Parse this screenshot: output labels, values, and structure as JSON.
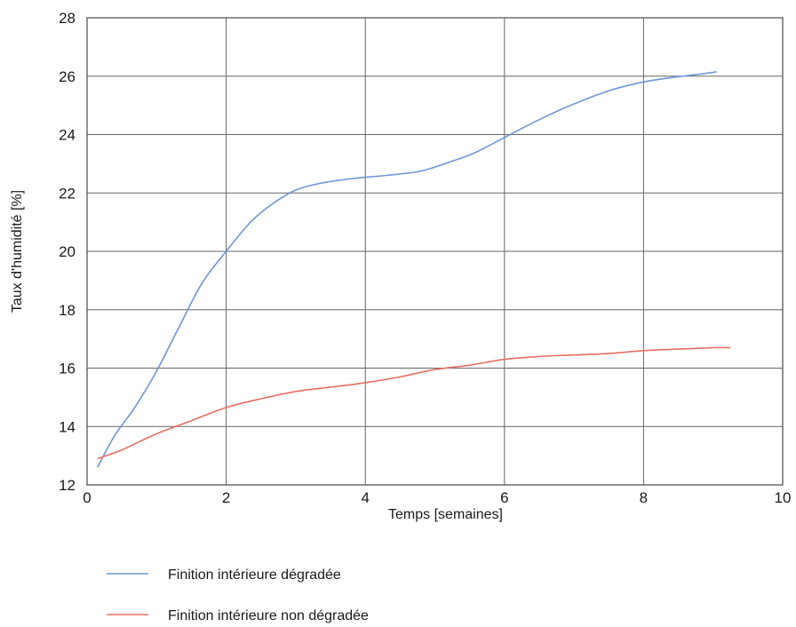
{
  "chart_data": {
    "type": "line",
    "title": "",
    "xlabel": "Temps [semaines]",
    "ylabel": "Taux d'humidité [%]",
    "xlim": [
      0,
      10
    ],
    "ylim": [
      12,
      28
    ],
    "xticks": [
      0,
      2,
      4,
      6,
      8,
      10
    ],
    "yticks": [
      12,
      14,
      16,
      18,
      20,
      22,
      24,
      26,
      28
    ],
    "grid": true,
    "legend_position": "bottom-left",
    "series": [
      {
        "name": "Finition intérieure dégradée",
        "color": "#6f96d6",
        "x": [
          0.15,
          0.4,
          0.7,
          1.0,
          1.3,
          1.65,
          2.0,
          2.35,
          2.65,
          3.0,
          3.4,
          3.85,
          4.3,
          4.8,
          5.2,
          5.55,
          6.0,
          6.45,
          6.9,
          7.5,
          8.0,
          8.4,
          8.75,
          9.05
        ],
        "values": [
          12.6,
          13.7,
          14.7,
          15.9,
          17.3,
          18.9,
          20.0,
          21.0,
          21.6,
          22.1,
          22.35,
          22.5,
          22.6,
          22.75,
          23.05,
          23.35,
          23.9,
          24.45,
          24.95,
          25.5,
          25.8,
          25.95,
          26.05,
          26.15
        ]
      },
      {
        "name": "Finition intérieure non dégradée",
        "color": "#e56f62",
        "x": [
          0.15,
          0.5,
          1.0,
          1.5,
          2.0,
          2.5,
          3.0,
          3.5,
          4.0,
          4.5,
          5.0,
          5.5,
          6.0,
          6.5,
          7.0,
          7.5,
          8.0,
          8.5,
          9.0,
          9.25
        ],
        "values": [
          12.9,
          13.2,
          13.75,
          14.2,
          14.65,
          14.95,
          15.2,
          15.35,
          15.5,
          15.7,
          15.95,
          16.1,
          16.3,
          16.4,
          16.45,
          16.5,
          16.6,
          16.65,
          16.7,
          16.7
        ]
      }
    ]
  }
}
